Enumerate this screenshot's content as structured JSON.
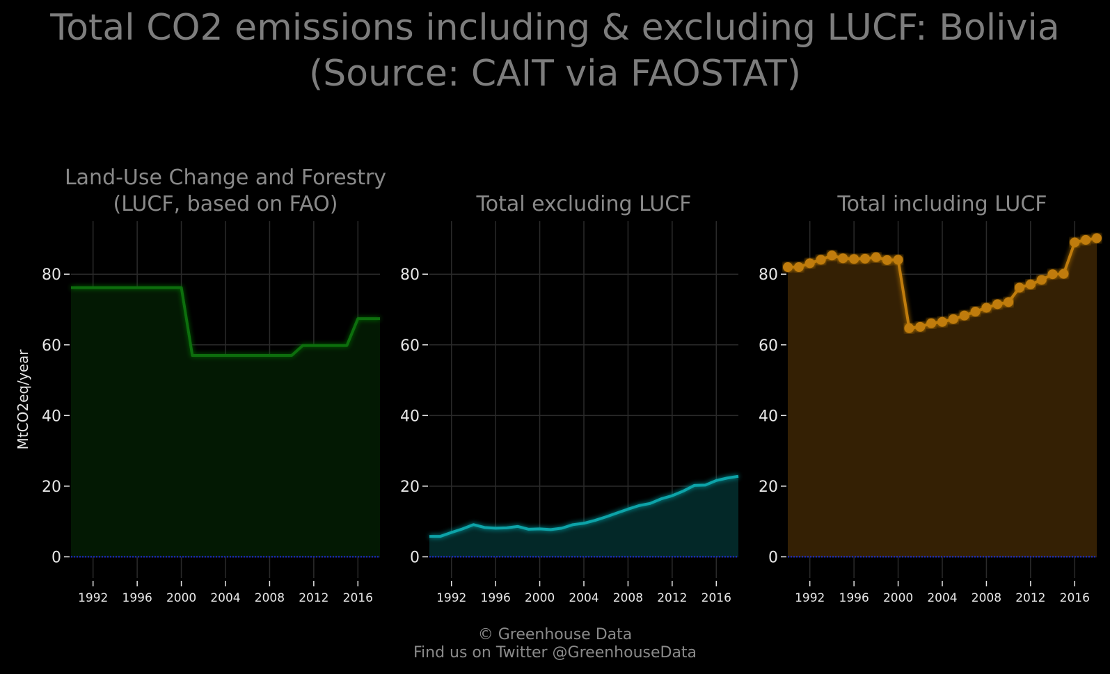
{
  "title_line1": "Total CO2 emissions including & excluding LUCF: Bolivia",
  "title_line2": "(Source: CAIT via FAOSTAT)",
  "footer_line1": "© Greenhouse Data",
  "footer_line2": "Find us on Twitter @GreenhouseData",
  "chart_data": [
    {
      "type": "area",
      "title": "Land-Use Change and Forestry\n(LUCF, based on FAO)",
      "ylabel": "MtCO2eq/year",
      "xlabel": "",
      "color": "#0b6e0b",
      "fill": "#031903",
      "markers": false,
      "ylim": [
        -6,
        95
      ],
      "yticks": [
        0,
        20,
        40,
        60,
        80
      ],
      "xlim": [
        1990,
        2018
      ],
      "xticks": [
        1992,
        1996,
        2000,
        2004,
        2008,
        2012,
        2016
      ],
      "grid": true,
      "x": [
        1990,
        1991,
        1992,
        1993,
        1994,
        1995,
        1996,
        1997,
        1998,
        1999,
        2000,
        2001,
        2002,
        2003,
        2004,
        2005,
        2006,
        2007,
        2008,
        2009,
        2010,
        2011,
        2012,
        2013,
        2014,
        2015,
        2016,
        2017,
        2018
      ],
      "values": [
        76.2,
        76.2,
        76.2,
        76.2,
        76.2,
        76.2,
        76.2,
        76.2,
        76.2,
        76.2,
        76.2,
        57.0,
        57.0,
        57.0,
        57.0,
        57.0,
        57.0,
        57.0,
        57.0,
        57.0,
        57.0,
        59.8,
        59.8,
        59.8,
        59.8,
        59.8,
        67.4,
        67.4,
        67.4
      ]
    },
    {
      "type": "area",
      "title": "Total excluding LUCF",
      "ylabel": "",
      "xlabel": "",
      "color": "#0aa3a8",
      "fill": "#032828",
      "markers": false,
      "ylim": [
        -6,
        95
      ],
      "yticks": [
        0,
        20,
        40,
        60,
        80
      ],
      "xlim": [
        1990,
        2018
      ],
      "xticks": [
        1992,
        1996,
        2000,
        2004,
        2008,
        2012,
        2016
      ],
      "grid": true,
      "x": [
        1990,
        1991,
        1992,
        1993,
        1994,
        1995,
        1996,
        1997,
        1998,
        1999,
        2000,
        2001,
        2002,
        2003,
        2004,
        2005,
        2006,
        2007,
        2008,
        2009,
        2010,
        2011,
        2012,
        2013,
        2014,
        2015,
        2016,
        2017,
        2018
      ],
      "values": [
        5.8,
        5.8,
        6.9,
        7.9,
        9.1,
        8.3,
        8.1,
        8.2,
        8.6,
        7.8,
        7.9,
        7.7,
        8.1,
        9.1,
        9.5,
        10.3,
        11.3,
        12.4,
        13.5,
        14.5,
        15.1,
        16.4,
        17.3,
        18.6,
        20.2,
        20.3,
        21.6,
        22.3,
        22.8
      ]
    },
    {
      "type": "area",
      "title": "Total including LUCF",
      "ylabel": "",
      "xlabel": "",
      "color": "#c07c0a",
      "fill": "#342004",
      "markers": true,
      "ylim": [
        -6,
        95
      ],
      "yticks": [
        0,
        20,
        40,
        60,
        80
      ],
      "xlim": [
        1990,
        2018
      ],
      "xticks": [
        1992,
        1996,
        2000,
        2004,
        2008,
        2012,
        2016
      ],
      "grid": true,
      "x": [
        1990,
        1991,
        1992,
        1993,
        1994,
        1995,
        1996,
        1997,
        1998,
        1999,
        2000,
        2001,
        2002,
        2003,
        2004,
        2005,
        2006,
        2007,
        2008,
        2009,
        2010,
        2011,
        2012,
        2013,
        2014,
        2015,
        2016,
        2017,
        2018
      ],
      "values": [
        82.0,
        82.0,
        83.1,
        84.1,
        85.3,
        84.5,
        84.3,
        84.4,
        84.8,
        84.0,
        84.1,
        64.7,
        65.1,
        66.1,
        66.5,
        67.3,
        68.3,
        69.4,
        70.5,
        71.5,
        72.1,
        76.2,
        77.1,
        78.4,
        80.0,
        80.1,
        89.0,
        89.7,
        90.2
      ]
    }
  ]
}
